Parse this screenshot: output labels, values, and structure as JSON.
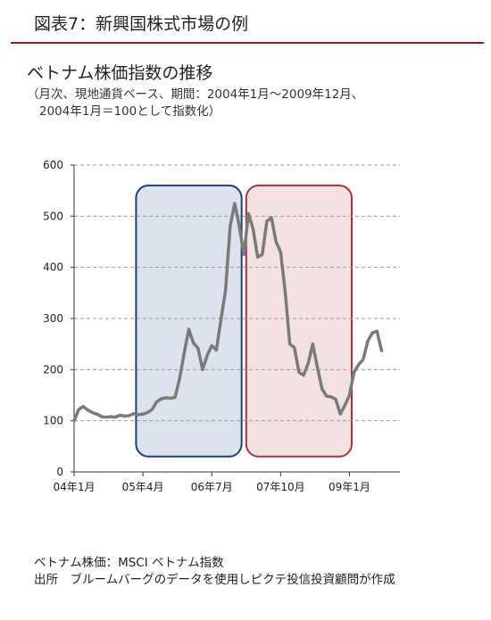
{
  "figure_label": "図表7：新興国株式市場の例",
  "chart_data": {
    "type": "line",
    "title": "ベトナム株価指数の推移",
    "subtitle_lines": [
      "（月次、現地通貨ベース、期間：2004年1月～2009年12月、",
      "2004年1月＝100として指数化）"
    ],
    "ylim": [
      0,
      600
    ],
    "yticks": [
      0,
      100,
      200,
      300,
      400,
      500,
      600
    ],
    "xtick_labels": [
      "04年1月",
      "05年4月",
      "06年7月",
      "07年10月",
      "09年1月"
    ],
    "xtick_months": [
      0,
      15,
      30,
      45,
      60
    ],
    "x_range_months": [
      0,
      71
    ],
    "grid": true,
    "series": [
      {
        "color": "#7a7a7a",
        "values": [
          100,
          122,
          128,
          121,
          116,
          113,
          108,
          107,
          108,
          107,
          111,
          109,
          110,
          114,
          112,
          113,
          116,
          122,
          137,
          143,
          145,
          144,
          146,
          183,
          233,
          279,
          252,
          242,
          200,
          228,
          247,
          238,
          298,
          355,
          480,
          525,
          480,
          425,
          505,
          475,
          420,
          425,
          490,
          497,
          450,
          430,
          352,
          250,
          243,
          195,
          189,
          212,
          250,
          205,
          163,
          148,
          147,
          142,
          113,
          130,
          150,
          195,
          210,
          220,
          256,
          272,
          275,
          237
        ]
      }
    ],
    "highlights": [
      {
        "name": "boom-period",
        "from_month": 13.5,
        "to_month": 36.5,
        "stroke": "#1f3d7a",
        "fill": "#dde3ee"
      },
      {
        "name": "bust-period",
        "from_month": 37.5,
        "to_month": 60.5,
        "stroke": "#a8313a",
        "fill": "#f4e2e3"
      }
    ]
  },
  "notes": [
    "ベトナム株価：MSCI ベトナム指数",
    "出所　ブルームバーグのデータを使用しピクテ投信投資顧問が作成"
  ]
}
